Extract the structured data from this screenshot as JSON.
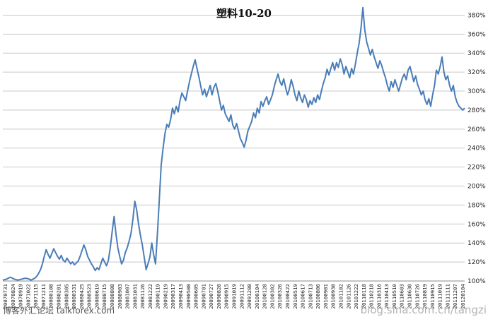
{
  "chart_data": {
    "type": "line",
    "title": "塑料10-20",
    "xlabel": "",
    "ylabel": "",
    "ylim": [
      100,
      390
    ],
    "y_ticks": [
      "100%",
      "120%",
      "140%",
      "160%",
      "180%",
      "200%",
      "220%",
      "240%",
      "260%",
      "280%",
      "300%",
      "320%",
      "340%",
      "360%",
      "380%"
    ],
    "y_tick_values": [
      100,
      120,
      140,
      160,
      180,
      200,
      220,
      240,
      260,
      280,
      300,
      320,
      340,
      360,
      380
    ],
    "y_axis_side": "right",
    "grid": true,
    "legend": "none",
    "line_color": "#4a7db8",
    "x_ticks": [
      "20070731",
      "20070824",
      "20070919",
      "20071022",
      "20071115",
      "20071211",
      "20080108",
      "20080201",
      "20080305",
      "20080331",
      "20080425",
      "20080523",
      "20080619",
      "20080715",
      "20080808",
      "20080903",
      "20081007",
      "20081031",
      "20081126",
      "20081222",
      "20090119",
      "20090219",
      "20090317",
      "20090413",
      "20090508",
      "20090605",
      "20090701",
      "20090727",
      "20090820",
      "20090915",
      "20091019",
      "20091112",
      "20091208",
      "20100104",
      "20100128",
      "20100302",
      "20100326",
      "20100422",
      "20100519",
      "20100617",
      "20100713",
      "20100806",
      "20100901",
      "20100930",
      "20101102",
      "20101126",
      "20101222",
      "20110118",
      "20110218",
      "20110316",
      "20110413",
      "20110510",
      "20110603",
      "20110630",
      "20110726",
      "20110819",
      "20110915",
      "20111019",
      "20111111",
      "20111207",
      "20120104"
    ],
    "series": [
      {
        "values": [
          [
            0,
            101
          ],
          [
            2,
            102
          ],
          [
            4,
            104
          ],
          [
            6,
            102
          ],
          [
            8,
            101
          ],
          [
            10,
            102
          ],
          [
            12,
            103
          ],
          [
            14,
            102
          ],
          [
            15,
            101
          ],
          [
            17,
            103
          ],
          [
            18,
            105
          ],
          [
            19,
            108
          ],
          [
            20,
            112
          ],
          [
            21,
            118
          ],
          [
            22,
            126
          ],
          [
            23,
            133
          ],
          [
            24,
            128
          ],
          [
            25,
            124
          ],
          [
            26,
            129
          ],
          [
            27,
            134
          ],
          [
            28,
            130
          ],
          [
            29,
            126
          ],
          [
            30,
            123
          ],
          [
            31,
            127
          ],
          [
            32,
            122
          ],
          [
            33,
            120
          ],
          [
            34,
            124
          ],
          [
            35,
            121
          ],
          [
            36,
            118
          ],
          [
            37,
            120
          ],
          [
            38,
            117
          ],
          [
            40,
            121
          ],
          [
            41,
            126
          ],
          [
            42,
            132
          ],
          [
            43,
            138
          ],
          [
            44,
            133
          ],
          [
            45,
            126
          ],
          [
            46,
            122
          ],
          [
            47,
            118
          ],
          [
            48,
            115
          ],
          [
            49,
            111
          ],
          [
            50,
            114
          ],
          [
            51,
            112
          ],
          [
            52,
            118
          ],
          [
            53,
            124
          ],
          [
            54,
            120
          ],
          [
            55,
            116
          ],
          [
            56,
            122
          ],
          [
            57,
            135
          ],
          [
            58,
            152
          ],
          [
            59,
            168
          ],
          [
            60,
            150
          ],
          [
            61,
            135
          ],
          [
            62,
            126
          ],
          [
            63,
            118
          ],
          [
            64,
            122
          ],
          [
            65,
            130
          ],
          [
            66,
            135
          ],
          [
            67,
            142
          ],
          [
            68,
            150
          ],
          [
            69,
            165
          ],
          [
            70,
            184
          ],
          [
            71,
            175
          ],
          [
            72,
            160
          ],
          [
            73,
            148
          ],
          [
            74,
            138
          ],
          [
            75,
            125
          ],
          [
            76,
            112
          ],
          [
            77,
            118
          ],
          [
            78,
            125
          ],
          [
            79,
            140
          ],
          [
            80,
            128
          ],
          [
            81,
            118
          ],
          [
            82,
            150
          ],
          [
            83,
            185
          ],
          [
            84,
            222
          ],
          [
            85,
            240
          ],
          [
            86,
            255
          ],
          [
            87,
            265
          ],
          [
            88,
            262
          ],
          [
            89,
            270
          ],
          [
            90,
            282
          ],
          [
            91,
            276
          ],
          [
            92,
            284
          ],
          [
            93,
            278
          ],
          [
            94,
            290
          ],
          [
            95,
            298
          ],
          [
            96,
            294
          ],
          [
            97,
            290
          ],
          [
            98,
            300
          ],
          [
            99,
            310
          ],
          [
            100,
            318
          ],
          [
            101,
            326
          ],
          [
            102,
            333
          ],
          [
            103,
            324
          ],
          [
            104,
            315
          ],
          [
            105,
            305
          ],
          [
            106,
            296
          ],
          [
            107,
            302
          ],
          [
            108,
            294
          ],
          [
            109,
            300
          ],
          [
            110,
            306
          ],
          [
            111,
            296
          ],
          [
            112,
            304
          ],
          [
            113,
            308
          ],
          [
            114,
            300
          ],
          [
            115,
            290
          ],
          [
            116,
            280
          ],
          [
            117,
            285
          ],
          [
            118,
            276
          ],
          [
            119,
            272
          ],
          [
            120,
            268
          ],
          [
            121,
            275
          ],
          [
            122,
            264
          ],
          [
            123,
            260
          ],
          [
            124,
            266
          ],
          [
            125,
            258
          ],
          [
            126,
            250
          ],
          [
            127,
            246
          ],
          [
            128,
            241
          ],
          [
            129,
            248
          ],
          [
            130,
            258
          ],
          [
            131,
            263
          ],
          [
            132,
            268
          ],
          [
            133,
            277
          ],
          [
            134,
            272
          ],
          [
            135,
            282
          ],
          [
            136,
            277
          ],
          [
            137,
            289
          ],
          [
            138,
            284
          ],
          [
            139,
            290
          ],
          [
            140,
            294
          ],
          [
            141,
            286
          ],
          [
            142,
            291
          ],
          [
            143,
            296
          ],
          [
            144,
            305
          ],
          [
            145,
            312
          ],
          [
            146,
            318
          ],
          [
            147,
            310
          ],
          [
            148,
            306
          ],
          [
            149,
            313
          ],
          [
            150,
            304
          ],
          [
            151,
            296
          ],
          [
            152,
            302
          ],
          [
            153,
            312
          ],
          [
            154,
            305
          ],
          [
            155,
            296
          ],
          [
            156,
            290
          ],
          [
            157,
            300
          ],
          [
            158,
            293
          ],
          [
            159,
            288
          ],
          [
            160,
            296
          ],
          [
            161,
            291
          ],
          [
            162,
            283
          ],
          [
            163,
            290
          ],
          [
            164,
            286
          ],
          [
            165,
            293
          ],
          [
            166,
            288
          ],
          [
            167,
            296
          ],
          [
            168,
            291
          ],
          [
            169,
            300
          ],
          [
            170,
            308
          ],
          [
            171,
            314
          ],
          [
            172,
            323
          ],
          [
            173,
            317
          ],
          [
            174,
            324
          ],
          [
            175,
            330
          ],
          [
            176,
            322
          ],
          [
            177,
            330
          ],
          [
            178,
            325
          ],
          [
            179,
            334
          ],
          [
            180,
            328
          ],
          [
            181,
            318
          ],
          [
            182,
            326
          ],
          [
            183,
            320
          ],
          [
            184,
            314
          ],
          [
            185,
            324
          ],
          [
            186,
            318
          ],
          [
            187,
            328
          ],
          [
            188,
            340
          ],
          [
            189,
            350
          ],
          [
            190,
            366
          ],
          [
            191,
            388
          ],
          [
            192,
            365
          ],
          [
            193,
            352
          ],
          [
            194,
            345
          ],
          [
            195,
            338
          ],
          [
            196,
            344
          ],
          [
            197,
            336
          ],
          [
            198,
            330
          ],
          [
            199,
            324
          ],
          [
            200,
            332
          ],
          [
            201,
            327
          ],
          [
            202,
            320
          ],
          [
            203,
            314
          ],
          [
            204,
            306
          ],
          [
            205,
            300
          ],
          [
            206,
            310
          ],
          [
            207,
            304
          ],
          [
            208,
            312
          ],
          [
            209,
            306
          ],
          [
            210,
            300
          ],
          [
            211,
            307
          ],
          [
            212,
            314
          ],
          [
            213,
            318
          ],
          [
            214,
            312
          ],
          [
            215,
            322
          ],
          [
            216,
            326
          ],
          [
            217,
            318
          ],
          [
            218,
            310
          ],
          [
            219,
            316
          ],
          [
            220,
            307
          ],
          [
            221,
            302
          ],
          [
            222,
            296
          ],
          [
            223,
            300
          ],
          [
            224,
            291
          ],
          [
            225,
            286
          ],
          [
            226,
            292
          ],
          [
            227,
            284
          ],
          [
            228,
            296
          ],
          [
            229,
            306
          ],
          [
            230,
            322
          ],
          [
            231,
            318
          ],
          [
            232,
            326
          ],
          [
            233,
            336
          ],
          [
            234,
            320
          ],
          [
            235,
            312
          ],
          [
            236,
            316
          ],
          [
            237,
            306
          ],
          [
            238,
            300
          ],
          [
            239,
            306
          ],
          [
            240,
            294
          ],
          [
            241,
            288
          ],
          [
            242,
            284
          ],
          [
            243,
            282
          ],
          [
            244,
            280
          ],
          [
            245,
            282
          ]
        ]
      }
    ],
    "watermark": "博客外汇论坛 talkforex.com",
    "watermark_right": "blog.sina.com.cn/tangzi"
  }
}
